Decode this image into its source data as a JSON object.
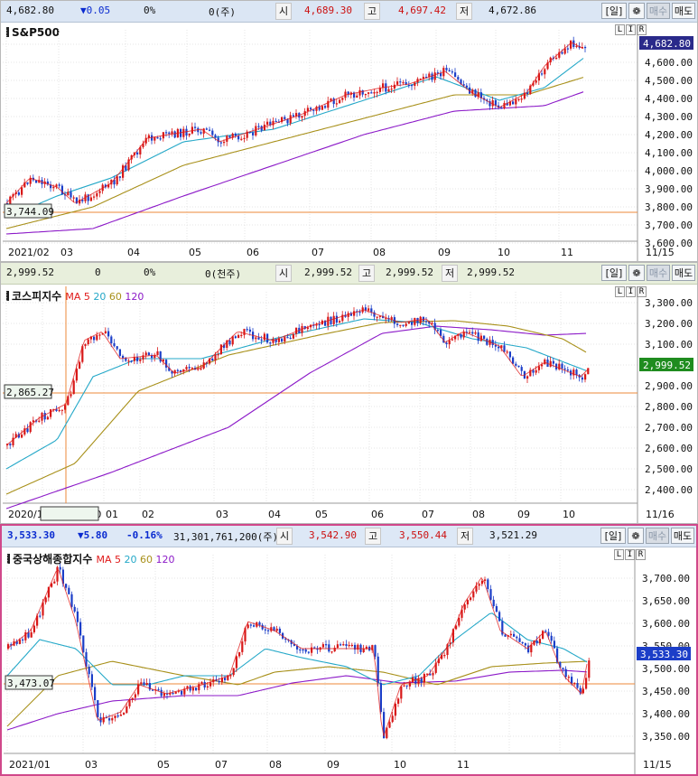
{
  "panels": [
    {
      "quote": {
        "price": "4,682.80",
        "change": "▼0.05",
        "pct": "0%",
        "volume": "0(주)",
        "open_label": "시",
        "open": "4,689.30",
        "high_label": "고",
        "high": "4,697.42",
        "low_label": "저",
        "low": "4,672.86"
      },
      "toolbar": {
        "period": "[일]",
        "settings": "❁",
        "buy": "매수",
        "sell": "매도"
      },
      "lir": [
        "L",
        "I",
        "R"
      ],
      "title": "S&P500",
      "ma_label": "",
      "ma_periods": [],
      "y_ticks": [
        "4,700.00",
        "4,600.00",
        "4,500.00",
        "4,400.00",
        "4,300.00",
        "4,200.00",
        "4,100.00",
        "4,000.00",
        "3,900.00",
        "3,800.00",
        "3,700.00",
        "3,600.00"
      ],
      "x_labels": [
        "2021/02",
        "03",
        "04",
        "05",
        "06",
        "07",
        "08",
        "09",
        "10",
        "11"
      ],
      "end_date": "11/15",
      "last_box": "4,682.80",
      "ref_box": "3,744.09",
      "colors": {
        "up": "#d81818",
        "down": "#1c3ec8",
        "ma5": "#e01a1a",
        "ma20": "#24a8c8",
        "ma60": "#a8901a",
        "ma120": "#8c1ac8",
        "ref": "#ee8a3a",
        "last_bg": "#2a2a8a"
      }
    },
    {
      "quote": {
        "price": "2,999.52",
        "change": "0",
        "pct": "0%",
        "volume": "0(천주)",
        "open_label": "시",
        "open": "2,999.52",
        "high_label": "고",
        "high": "2,999.52",
        "low_label": "저",
        "low": "2,999.52"
      },
      "toolbar": {
        "period": "[일]",
        "settings": "❁",
        "buy": "매수",
        "sell": "매도"
      },
      "lir": [
        "L",
        "I",
        "R"
      ],
      "title": "코스피지수",
      "ma_label": "MA",
      "ma_periods": [
        "5",
        "20",
        "60",
        "120"
      ],
      "y_ticks": [
        "3,300.00",
        "3,200.00",
        "3,100.00",
        "3,000.00",
        "2,900.00",
        "2,800.00",
        "2,700.00",
        "2,600.00",
        "2,500.00",
        "2,400.00"
      ],
      "x_labels": [
        "2020/1",
        "2020/12/30",
        "01",
        "02",
        "03",
        "04",
        "05",
        "06",
        "07",
        "08",
        "09",
        "10",
        "11"
      ],
      "end_date": "11/16",
      "last_box": "2,999.52",
      "ref_box": "2,865.27",
      "colors": {
        "up": "#d81818",
        "down": "#1c3ec8",
        "ma5": "#e01a1a",
        "ma20": "#24a8c8",
        "ma60": "#a8901a",
        "ma120": "#8c1ac8",
        "ref": "#ee8a3a",
        "last_bg": "#1f8c1f"
      }
    },
    {
      "quote": {
        "price": "3,533.30",
        "change": "▼5.80",
        "pct": "-0.16%",
        "volume": "31,301,761,200(주)",
        "open_label": "시",
        "open": "3,542.90",
        "high_label": "고",
        "high": "3,550.44",
        "low_label": "저",
        "low": "3,521.29"
      },
      "toolbar": {
        "period": "[일]",
        "settings": "❁",
        "buy": "매수",
        "sell": "매도"
      },
      "lir": [
        "L",
        "I",
        "R"
      ],
      "title": "중국상해종합지수",
      "ma_label": "MA",
      "ma_periods": [
        "5",
        "20",
        "60",
        "120"
      ],
      "y_ticks": [
        "3,700.00",
        "3,650.00",
        "3,600.00",
        "3,550.00",
        "3,500.00",
        "3,450.00",
        "3,400.00",
        "3,350.00"
      ],
      "x_labels": [
        "2021/01",
        "03",
        "05",
        "07",
        "08",
        "09",
        "10",
        "11"
      ],
      "end_date": "11/15",
      "last_box": "3,533.30",
      "ref_box": "3,473.07",
      "colors": {
        "up": "#d81818",
        "down": "#1c3ec8",
        "ma5": "#e01a1a",
        "ma20": "#24a8c8",
        "ma60": "#a8901a",
        "ma120": "#8c1ac8",
        "ref": "#ee8a3a",
        "last_bg": "#1c3ec8"
      }
    }
  ]
}
